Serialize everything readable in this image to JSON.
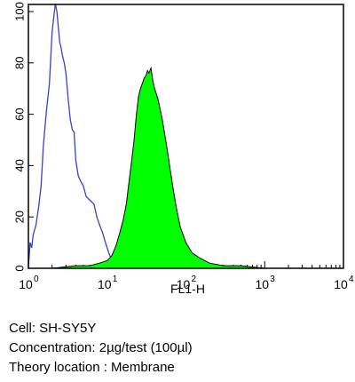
{
  "chart_data": {
    "type": "area",
    "xlabel": "FL1-H",
    "x_scale": "log10",
    "xlim": [
      1,
      10000
    ],
    "ylim": [
      0,
      100
    ],
    "x_ticks": [
      {
        "base": "10",
        "exp": "0"
      },
      {
        "base": "10",
        "exp": "1"
      },
      {
        "base": "10",
        "exp": "2"
      },
      {
        "base": "10",
        "exp": "3"
      },
      {
        "base": "10",
        "exp": "4"
      }
    ],
    "y_ticks": [
      "0",
      "20",
      "40",
      "60",
      "80",
      "100"
    ],
    "series": [
      {
        "style": "outline",
        "color": "#3344cc",
        "x": [
          1.0,
          1.05,
          1.1,
          1.15,
          1.25,
          1.35,
          1.45,
          1.55,
          1.7,
          1.85,
          2.0,
          2.1,
          2.2,
          2.3,
          2.4,
          2.5,
          2.6,
          2.7,
          2.85,
          3.0,
          3.2,
          3.4,
          3.6,
          3.8,
          4.0,
          4.3,
          4.6,
          5.0,
          5.4,
          5.8,
          6.3,
          6.8,
          7.4,
          8.0,
          8.7,
          9.5,
          10.5,
          11.5,
          12.5
        ],
        "y": [
          0,
          10,
          8,
          13,
          17,
          24,
          32,
          48,
          62,
          72,
          92,
          98,
          103,
          100,
          94,
          88,
          86,
          83,
          80,
          76,
          66,
          58,
          54,
          53,
          42,
          36,
          34,
          32,
          28,
          27,
          26,
          25,
          20,
          17,
          14,
          10,
          6,
          3,
          1
        ]
      },
      {
        "style": "filled",
        "color": "#00ff00",
        "x": [
          1.0,
          2.0,
          4.0,
          6.0,
          8.0,
          10.0,
          11.5,
          13.0,
          14.5,
          16.0,
          17.5,
          19.0,
          20.5,
          22.0,
          23.5,
          25.0,
          26.5,
          28.0,
          29.5,
          31.0,
          32.5,
          34.0,
          36.0,
          38.0,
          40.0,
          42.0,
          44.0,
          47.0,
          50.0,
          54.0,
          58.0,
          62.0,
          68.0,
          75.0,
          85.0,
          100.0,
          120.0,
          150.0,
          200.0,
          300.0,
          500.0,
          1000.0,
          3000.0,
          10000.0
        ],
        "y": [
          0,
          0,
          1,
          1,
          2,
          3,
          5,
          9,
          14,
          19,
          25,
          34,
          42,
          50,
          60,
          67,
          70,
          72,
          74,
          75,
          77,
          76,
          78,
          73,
          70,
          68,
          66,
          62,
          58,
          52,
          46,
          40,
          32,
          24,
          16,
          10,
          6,
          4,
          2,
          1,
          1,
          0,
          0,
          0
        ]
      }
    ]
  },
  "caption": {
    "cell": "Cell: SH-SY5Y",
    "concentration": "Concentration: 2µg/test (100µl)",
    "location": "Theory location : Membrane"
  }
}
